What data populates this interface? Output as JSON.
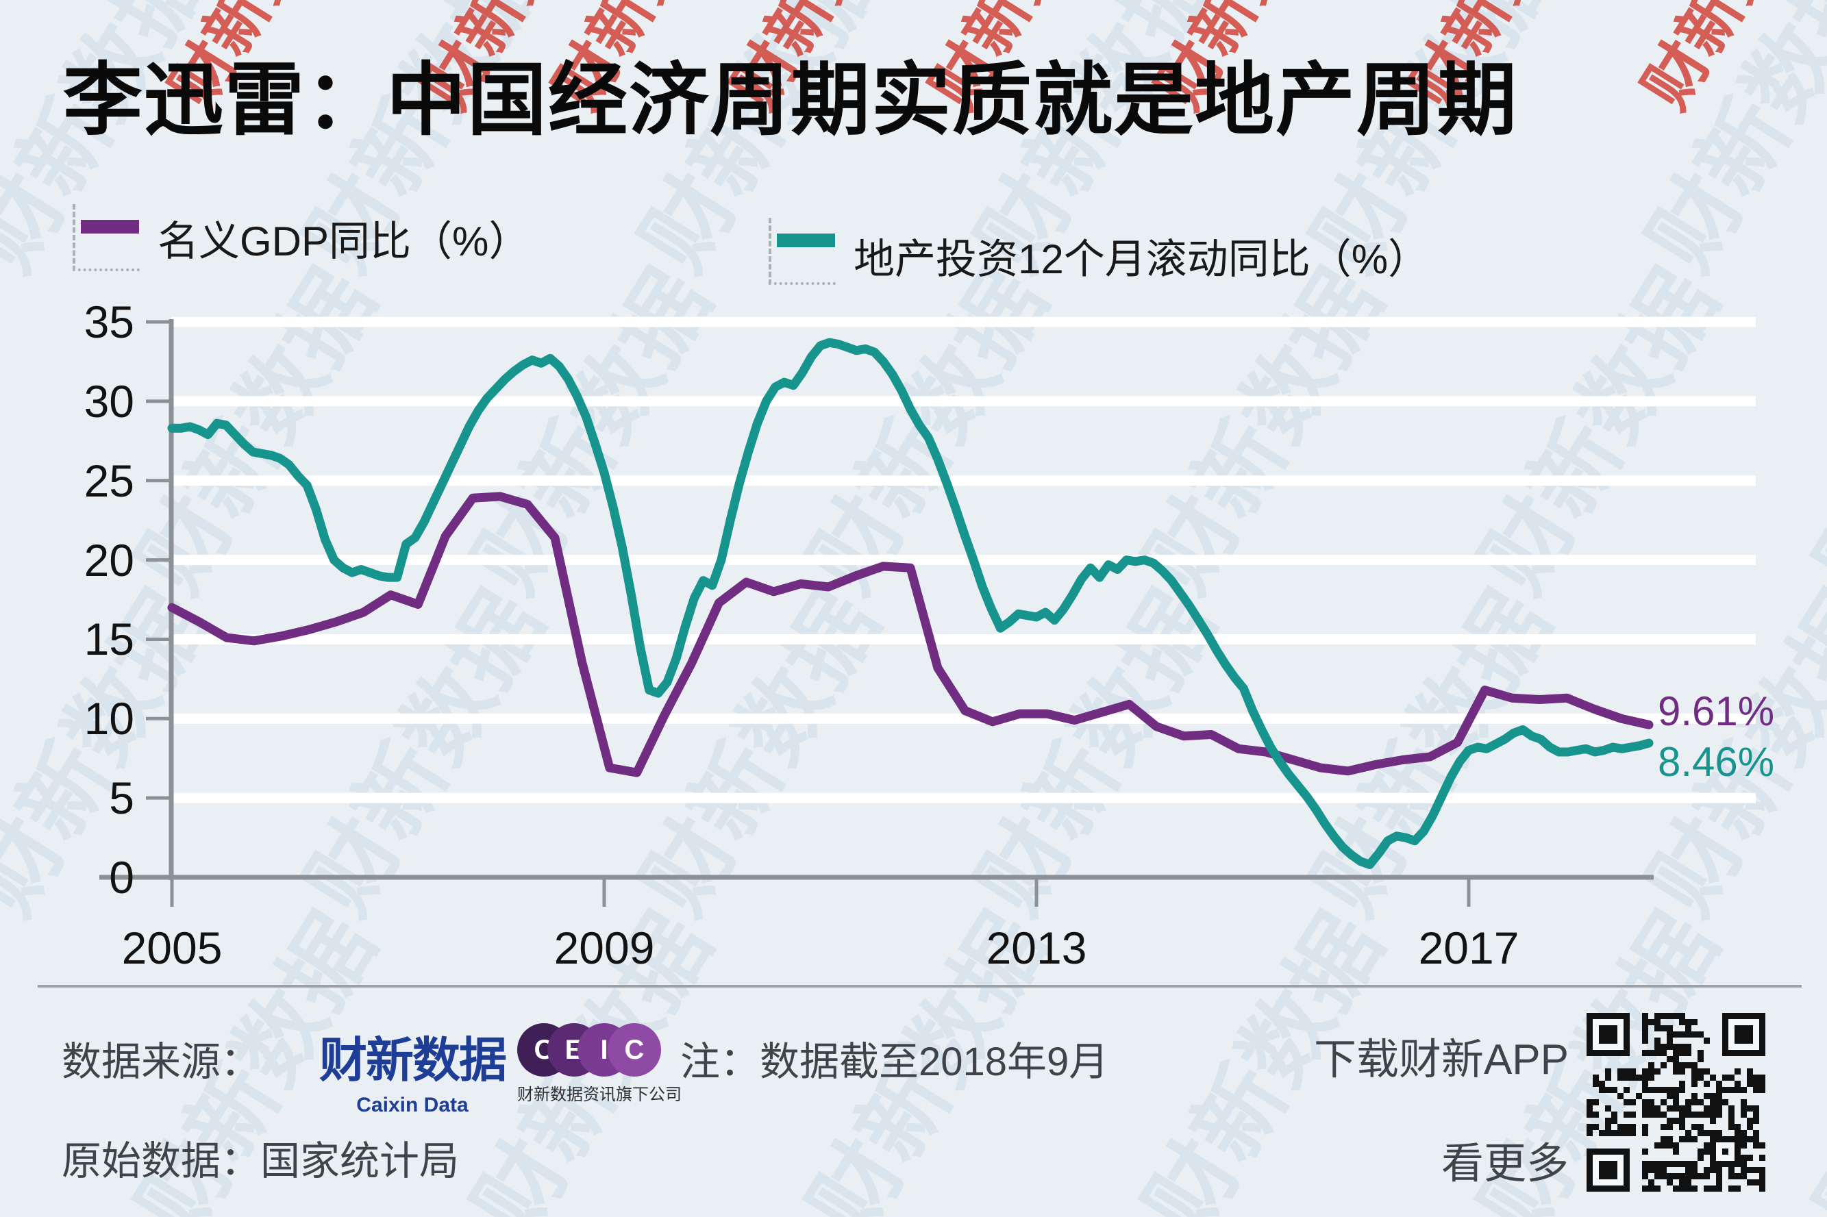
{
  "title": "李迅雷：中国经济周期实质就是地产周期",
  "legend": [
    {
      "label": "名义GDP同比（%）",
      "color": "#702d82"
    },
    {
      "label": "地产投资12个月滚动同比（%）",
      "color": "#18948e"
    }
  ],
  "chart_data": {
    "type": "line",
    "title": "李迅雷：中国经济周期实质就是地产周期",
    "xlabel": "",
    "ylabel": "",
    "ylim": [
      0,
      35
    ],
    "grid": "horizontal-white-bands",
    "legend_position": "top",
    "x_axis_ticks": [
      2005,
      2009,
      2013,
      2017
    ],
    "y_axis_ticks": [
      0,
      5,
      10,
      15,
      20,
      25,
      30,
      35
    ],
    "series": [
      {
        "name": "名义GDP同比（%）",
        "color": "#702d82",
        "frequency": "quarterly",
        "x_start": 2005.0,
        "x_end": 2018.667,
        "first_period": "2005Q1",
        "last_period": "2018Q3",
        "values": [
          17.0,
          16.1,
          15.1,
          14.9,
          15.2,
          15.6,
          16.1,
          16.7,
          17.8,
          17.2,
          21.5,
          23.9,
          24.0,
          23.5,
          21.4,
          13.5,
          6.9,
          6.6,
          10.2,
          13.5,
          17.3,
          18.6,
          18.0,
          18.5,
          18.3,
          19.0,
          19.6,
          19.5,
          13.2,
          10.5,
          9.8,
          10.3,
          10.3,
          9.9,
          10.4,
          10.9,
          9.5,
          8.9,
          9.0,
          8.1,
          7.9,
          7.4,
          6.9,
          6.7,
          7.1,
          7.4,
          7.6,
          8.5,
          11.8,
          11.3,
          11.2,
          11.3,
          10.6,
          10.0,
          9.61
        ]
      },
      {
        "name": "地产投资12个月滚动同比（%）",
        "color": "#18948e",
        "frequency": "monthly",
        "x_start": 2005.0,
        "x_end": 2018.667,
        "first_period": "2005-01",
        "last_period": "2018-09",
        "values": [
          28.3,
          28.3,
          28.4,
          28.2,
          27.9,
          28.6,
          28.5,
          27.9,
          27.3,
          26.8,
          26.7,
          26.6,
          26.4,
          26.0,
          25.3,
          24.7,
          23.2,
          21.3,
          20.0,
          19.5,
          19.2,
          19.4,
          19.2,
          19.0,
          18.9,
          18.9,
          21.0,
          21.4,
          22.4,
          23.6,
          24.8,
          26.0,
          27.2,
          28.4,
          29.4,
          30.2,
          30.8,
          31.4,
          31.9,
          32.3,
          32.6,
          32.4,
          32.7,
          32.2,
          31.4,
          30.3,
          29.0,
          27.3,
          25.5,
          23.3,
          20.8,
          17.8,
          14.5,
          11.8,
          11.6,
          12.3,
          13.8,
          15.8,
          17.6,
          18.7,
          18.4,
          20.0,
          22.5,
          24.8,
          26.8,
          28.6,
          30.0,
          30.9,
          31.2,
          31.0,
          31.8,
          32.8,
          33.5,
          33.7,
          33.6,
          33.4,
          33.2,
          33.3,
          33.1,
          32.5,
          31.7,
          30.7,
          29.5,
          28.5,
          27.7,
          26.4,
          24.9,
          23.3,
          21.6,
          20.0,
          18.3,
          16.9,
          15.7,
          16.1,
          16.6,
          16.5,
          16.4,
          16.7,
          16.2,
          16.9,
          17.8,
          18.8,
          19.5,
          18.9,
          19.7,
          19.4,
          20.0,
          19.9,
          20.0,
          19.8,
          19.3,
          18.7,
          17.9,
          17.1,
          16.2,
          15.3,
          14.3,
          13.4,
          12.6,
          11.9,
          10.5,
          9.3,
          8.2,
          7.3,
          6.5,
          5.8,
          5.1,
          4.3,
          3.4,
          2.6,
          1.9,
          1.4,
          1.0,
          0.8,
          1.5,
          2.3,
          2.6,
          2.5,
          2.3,
          2.9,
          3.9,
          5.1,
          6.3,
          7.3,
          8.0,
          8.2,
          8.1,
          8.4,
          8.7,
          9.1,
          9.3,
          8.9,
          8.7,
          8.2,
          7.9,
          7.9,
          8.0,
          8.1,
          7.9,
          8.0,
          8.2,
          8.1,
          8.2,
          8.3,
          8.46
        ]
      }
    ],
    "end_labels": [
      {
        "text": "9.61%",
        "color": "#702d82",
        "series": "名义GDP同比（%）"
      },
      {
        "text": "8.46%",
        "color": "#18948e",
        "series": "地产投资12个月滚动同比（%）"
      }
    ]
  },
  "footer": {
    "source_label": "数据来源：",
    "caixin_logo_zh": "财新数据",
    "caixin_logo_en": "Caixin Data",
    "ceic_letters": [
      "C",
      "E",
      "I",
      "C"
    ],
    "ceic_tagline": "财新数据资讯旗下公司",
    "note": "注：数据截至2018年9月",
    "download_app": "下载财新APP",
    "see_more": "看更多",
    "raw_data": "原始数据：国家统计局"
  },
  "watermark": {
    "text": "财新数据"
  },
  "colors": {
    "background": "#e9eff3",
    "axis": "#8b9196",
    "gridline": "#ffffff",
    "gdp_purple": "#702d82",
    "property_teal": "#18948e",
    "footer_text": "#3e4449",
    "caixin_blue": "#1e3d96",
    "ceic_purples": [
      "#3f1f55",
      "#5c2a72",
      "#7c3b92",
      "#8e4aa5"
    ]
  }
}
